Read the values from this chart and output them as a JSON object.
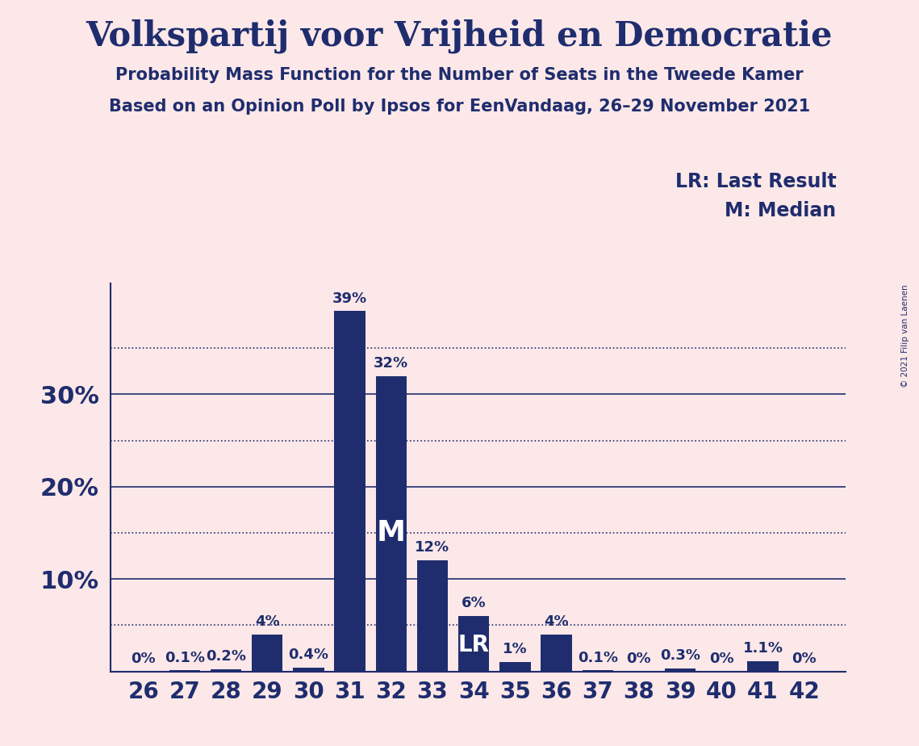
{
  "title": "Volkspartij voor Vrijheid en Democratie",
  "subtitle1": "Probability Mass Function for the Number of Seats in the Tweede Kamer",
  "subtitle2": "Based on an Opinion Poll by Ipsos for EenVandaag, 26–29 November 2021",
  "copyright": "© 2021 Filip van Laenen",
  "legend_lr": "LR: Last Result",
  "legend_m": "M: Median",
  "seats": [
    26,
    27,
    28,
    29,
    30,
    31,
    32,
    33,
    34,
    35,
    36,
    37,
    38,
    39,
    40,
    41,
    42
  ],
  "probabilities": [
    0.0,
    0.1,
    0.2,
    4.0,
    0.4,
    39.0,
    32.0,
    12.0,
    6.0,
    1.0,
    4.0,
    0.1,
    0.0,
    0.3,
    0.0,
    1.1,
    0.0
  ],
  "bar_color": "#1f2d6e",
  "background_color": "#fce8e8",
  "median_seat": 32,
  "lr_seat": 34,
  "solid_lines": [
    10,
    20,
    30
  ],
  "dotted_lines": [
    5,
    15,
    25,
    35
  ],
  "title_fontsize": 30,
  "subtitle_fontsize": 15,
  "axis_tick_fontsize": 20,
  "bar_label_fontsize": 13,
  "legend_fontsize": 17,
  "ylabel_fontsize": 22,
  "ylim": [
    0,
    42
  ],
  "ytick_positions": [
    10,
    20,
    30
  ],
  "ytick_labels": [
    "10%",
    "20%",
    "30%"
  ]
}
